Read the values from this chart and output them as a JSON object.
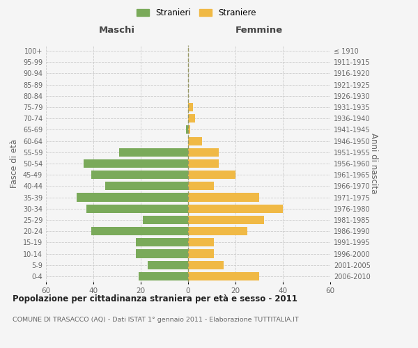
{
  "age_groups": [
    "0-4",
    "5-9",
    "10-14",
    "15-19",
    "20-24",
    "25-29",
    "30-34",
    "35-39",
    "40-44",
    "45-49",
    "50-54",
    "55-59",
    "60-64",
    "65-69",
    "70-74",
    "75-79",
    "80-84",
    "85-89",
    "90-94",
    "95-99",
    "100+"
  ],
  "birth_years": [
    "2006-2010",
    "2001-2005",
    "1996-2000",
    "1991-1995",
    "1986-1990",
    "1981-1985",
    "1976-1980",
    "1971-1975",
    "1966-1970",
    "1961-1965",
    "1956-1960",
    "1951-1955",
    "1946-1950",
    "1941-1945",
    "1936-1940",
    "1931-1935",
    "1926-1930",
    "1921-1925",
    "1916-1920",
    "1911-1915",
    "≤ 1910"
  ],
  "males": [
    21,
    17,
    22,
    22,
    41,
    19,
    43,
    47,
    35,
    41,
    44,
    29,
    0,
    1,
    0,
    0,
    0,
    0,
    0,
    0,
    0
  ],
  "females": [
    30,
    15,
    11,
    11,
    25,
    32,
    40,
    30,
    11,
    20,
    13,
    13,
    6,
    1,
    3,
    2,
    0,
    0,
    0,
    0,
    0
  ],
  "male_color": "#7aaa5a",
  "female_color": "#f0b945",
  "background_color": "#f5f5f5",
  "grid_color": "#cccccc",
  "title": "Popolazione per cittadinanza straniera per età e sesso - 2011",
  "subtitle": "COMUNE DI TRASACCO (AQ) - Dati ISTAT 1° gennaio 2011 - Elaborazione TUTTITALIA.IT",
  "xlabel_left": "Maschi",
  "xlabel_right": "Femmine",
  "ylabel_left": "Fasce di età",
  "ylabel_right": "Anni di nascita",
  "legend_male": "Stranieri",
  "legend_female": "Straniere",
  "xlim": 60,
  "center_line_color": "#999966"
}
